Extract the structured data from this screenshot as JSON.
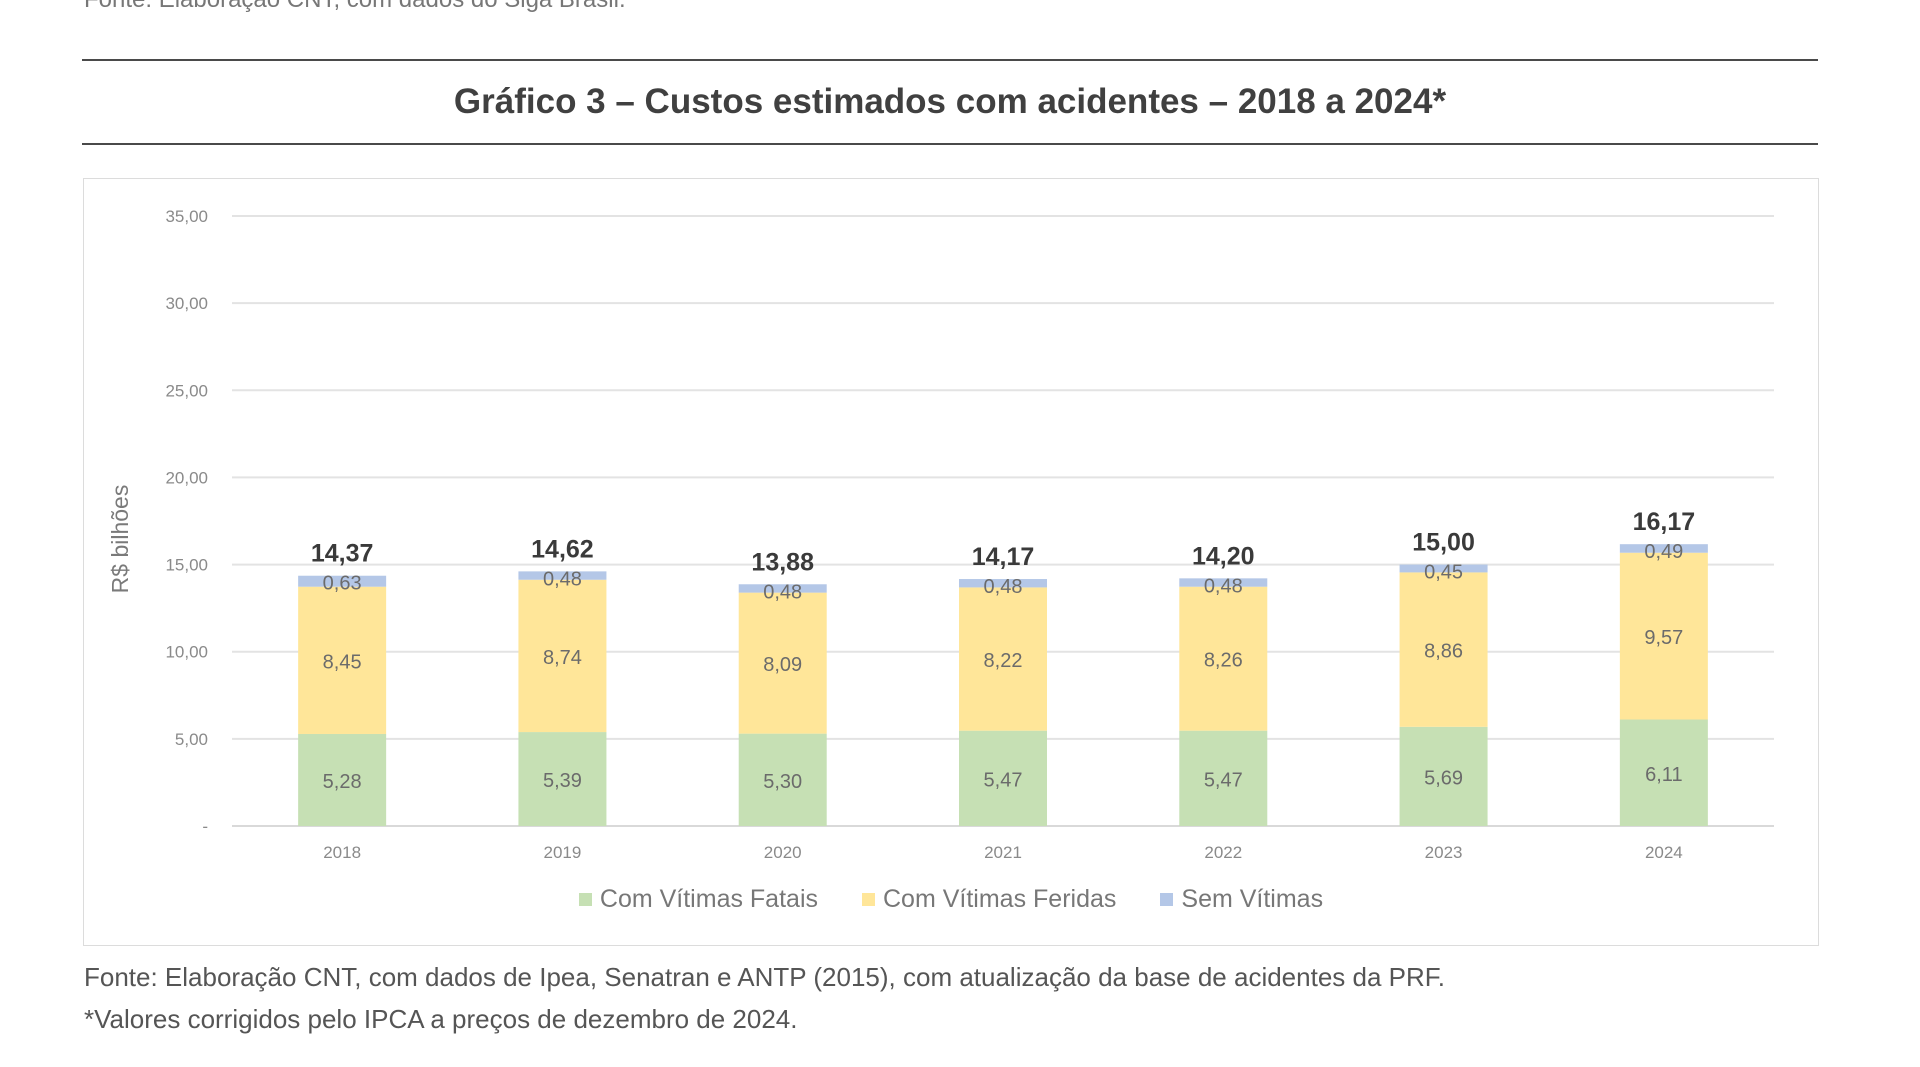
{
  "header": {
    "source_top": "Fonte: Elaboração CNT, com dados do Siga Brasil."
  },
  "chart_data": {
    "type": "bar",
    "stacked": true,
    "title": "Gráfico 3 – Custos estimados com acidentes – 2018 a 2024*",
    "ylabel": "R$ bilhões",
    "xlabel": "",
    "ylim": [
      0,
      35
    ],
    "yticks": [
      "-",
      "5,00",
      "10,00",
      "15,00",
      "20,00",
      "25,00",
      "30,00",
      "35,00"
    ],
    "grid": true,
    "legend_position": "bottom",
    "categories": [
      "2018",
      "2019",
      "2020",
      "2021",
      "2022",
      "2023",
      "2024"
    ],
    "series": [
      {
        "name": "Com Vítimas Fatais",
        "color": "#c6e0b4",
        "values": [
          5.28,
          5.39,
          5.3,
          5.47,
          5.47,
          5.69,
          6.11
        ],
        "labels": [
          "5,28",
          "5,39",
          "5,30",
          "5,47",
          "5,47",
          "5,69",
          "6,11"
        ]
      },
      {
        "name": "Com Vítimas Feridas",
        "color": "#ffe699",
        "values": [
          8.45,
          8.74,
          8.09,
          8.22,
          8.26,
          8.86,
          9.57
        ],
        "labels": [
          "8,45",
          "8,74",
          "8,09",
          "8,22",
          "8,26",
          "8,86",
          "9,57"
        ]
      },
      {
        "name": "Sem Vítimas",
        "color": "#b4c7e7",
        "values": [
          0.63,
          0.48,
          0.48,
          0.48,
          0.48,
          0.45,
          0.49
        ],
        "labels": [
          "0,63",
          "0,48",
          "0,48",
          "0,48",
          "0,48",
          "0,45",
          "0,49"
        ]
      }
    ],
    "totals": [
      "14,37",
      "14,62",
      "13,88",
      "14,17",
      "14,20",
      "15,00",
      "16,17"
    ]
  },
  "footer": {
    "source": "Fonte: Elaboração CNT, com dados de Ipea, Senatran e ANTP (2015), com atualização da base de acidentes da PRF.",
    "note": "*Valores corrigidos pelo IPCA a preços de dezembro de 2024."
  }
}
